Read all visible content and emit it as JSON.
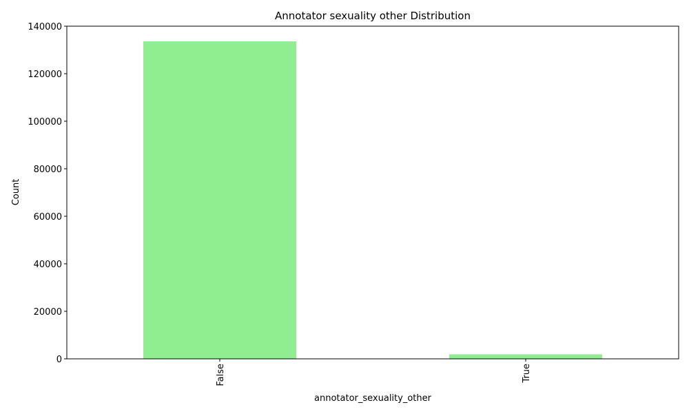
{
  "chart_data": {
    "type": "bar",
    "title": "Annotator sexuality other Distribution",
    "xlabel": "annotator_sexuality_other",
    "ylabel": "Count",
    "categories": [
      "False",
      "True"
    ],
    "values": [
      133600,
      1900
    ],
    "ylim": [
      0,
      140000
    ],
    "yticks": [
      "0",
      "20000",
      "40000",
      "60000",
      "80000",
      "100000",
      "120000",
      "140000"
    ],
    "grid": false,
    "legend": "none",
    "bar_color": "#90ee90"
  }
}
